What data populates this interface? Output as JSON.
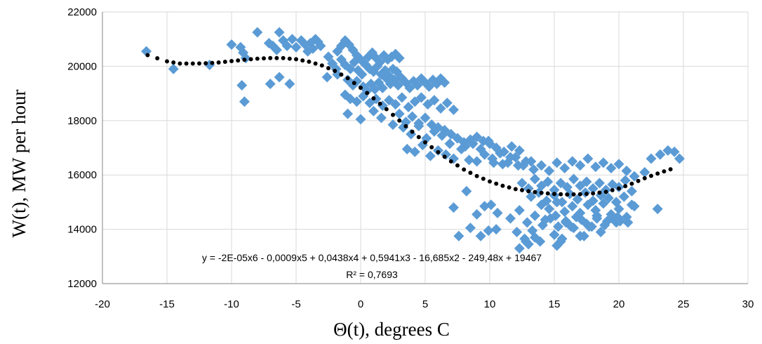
{
  "chart_data": {
    "type": "scatter",
    "xlabel": "Θ(t), degrees C",
    "ylabel": "W(t), MW per hour",
    "xlim": [
      -20,
      30
    ],
    "ylim": [
      12000,
      22000
    ],
    "x_ticks": [
      "-20",
      "-15",
      "-10",
      "-5",
      "0",
      "5",
      "10",
      "15",
      "20",
      "25",
      "30"
    ],
    "y_ticks": [
      "12000",
      "14000",
      "16000",
      "18000",
      "20000",
      "22000"
    ],
    "grid": "vertical and horizontal major gridlines",
    "marker": "diamond",
    "colors": {
      "points": "#5B9BD5",
      "trendline": "#000000",
      "grid": "#D9D9D9"
    },
    "trendline": {
      "type": "polynomial, order 6, dotted",
      "equation": "y = -2E-05x6 - 0,0009x5 + 0,0438x4 + 0,5941x3 - 16,685x2 - 249,48x + 19467",
      "r_squared": "R² = 0,7693",
      "x": [
        -16.5,
        -15,
        -14,
        -13,
        -12,
        -11,
        -10,
        -9,
        -8,
        -7,
        -6,
        -5,
        -4,
        -3,
        -2,
        -1,
        0,
        1,
        2,
        3,
        4,
        5,
        6,
        7,
        8,
        9,
        10,
        11,
        12,
        13,
        14,
        15,
        16,
        17,
        18,
        19,
        20,
        21,
        22,
        23,
        24
      ],
      "y": [
        20410,
        20180,
        20100,
        20100,
        20110,
        20140,
        20190,
        20240,
        20280,
        20300,
        20300,
        20260,
        20170,
        20030,
        19830,
        19560,
        19210,
        18820,
        18420,
        18000,
        17590,
        17200,
        16840,
        16500,
        16200,
        15960,
        15760,
        15600,
        15480,
        15400,
        15340,
        15300,
        15280,
        15290,
        15320,
        15380,
        15500,
        15680,
        15880,
        16050,
        16210
      ]
    },
    "series": [
      {
        "x": [
          -16.6,
          -14.5,
          -11.7,
          -10.0,
          -9.3,
          -9.1,
          -8.9,
          -8.0,
          -7.1,
          -6.8,
          -6.5,
          -6.3,
          -6.0,
          -5.7,
          -5.3,
          -5.0,
          -4.6,
          -4.3,
          -4.1,
          -3.9,
          -3.7,
          -3.5,
          -3.3,
          -3.1,
          -9.2,
          -9.0,
          -7.0,
          -6.3,
          -5.5,
          -2.5,
          -1.8,
          -1.5,
          -1.2,
          -0.9,
          -0.6,
          -0.3,
          0.0,
          0.3,
          0.6,
          0.9,
          1.2,
          1.5,
          1.8,
          2.1,
          2.4,
          2.7,
          3.0,
          -2.2,
          -1.9,
          -1.5,
          -1.2,
          -0.8,
          -0.5,
          -0.2,
          0.1,
          0.4,
          0.7,
          1.0,
          1.3,
          1.6,
          1.9,
          2.2,
          2.5,
          2.8,
          3.1,
          -2.6,
          -1.8,
          -1.0,
          -0.6,
          -0.3,
          0.2,
          0.5,
          0.8,
          1.1,
          1.4,
          1.7,
          2.0,
          2.3,
          2.6,
          2.9,
          3.2,
          3.5,
          3.8,
          4.1,
          4.4,
          4.7,
          5.0,
          5.3,
          5.6,
          5.9,
          6.2,
          6.5,
          -1.2,
          -0.8,
          -0.3,
          0.2,
          0.7,
          1.2,
          1.7,
          2.2,
          2.7,
          3.2,
          3.7,
          4.2,
          4.7,
          5.2,
          5.7,
          6.2,
          6.7,
          7.2,
          -1.0,
          0.0,
          1.0,
          1.6,
          2.5,
          3.0,
          3.5,
          4.0,
          4.5,
          5.0,
          5.5,
          6.0,
          6.5,
          7.0,
          7.5,
          8.0,
          8.5,
          9.0,
          9.5,
          10.0,
          3.3,
          3.9,
          4.5,
          5.1,
          5.7,
          6.3,
          6.9,
          7.5,
          8.1,
          8.7,
          9.3,
          9.9,
          10.5,
          11.1,
          11.7,
          12.3,
          3.6,
          4.2,
          4.8,
          5.4,
          6.0,
          6.6,
          7.2,
          7.8,
          8.4,
          9.0,
          9.6,
          10.2,
          10.8,
          11.4,
          12.0,
          12.6,
          13.2,
          10.3,
          11.0,
          11.6,
          12.2,
          12.8,
          13.4,
          14.0,
          14.6,
          15.2,
          15.8,
          16.4,
          17.0,
          17.6,
          18.2,
          18.8,
          19.4,
          20.0,
          20.6,
          21.2,
          22.0,
          22.5,
          23.2,
          23.8,
          24.3,
          24.7,
          12.5,
          13.0,
          13.5,
          14.0,
          14.5,
          15.0,
          15.5,
          16.0,
          16.5,
          17.0,
          17.5,
          18.0,
          18.5,
          19.0,
          19.5,
          20.0,
          20.5,
          21.0,
          13.2,
          13.8,
          14.4,
          15.0,
          15.6,
          16.2,
          16.8,
          17.4,
          18.0,
          18.6,
          19.2,
          19.8,
          20.4,
          14.0,
          14.6,
          15.2,
          15.8,
          16.4,
          17.0,
          17.6,
          18.2,
          18.8,
          19.4,
          20.0,
          20.6,
          21.2,
          14.3,
          15.1,
          15.9,
          16.7,
          17.5,
          18.3,
          19.1,
          19.9,
          20.7,
          7.2,
          8.2,
          9.0,
          9.6,
          10.1,
          10.6,
          11.6,
          12.3,
          12.9,
          13.5,
          14.1,
          14.7,
          15.3,
          15.9,
          16.5,
          17.1,
          17.7,
          18.3,
          18.9,
          19.5,
          20.1,
          21.0,
          23.0,
          7.6,
          8.5,
          9.3,
          9.9,
          10.5,
          12.1,
          12.7,
          13.3,
          13.9,
          15.0,
          15.6,
          16.3,
          17.0,
          17.9,
          18.6,
          19.8,
          12.3,
          12.8,
          13.0,
          13.5,
          15.2,
          15.5,
          17.3
        ],
        "y": [
          20550,
          19900,
          20050,
          20800,
          20700,
          20500,
          20300,
          21250,
          20850,
          20750,
          20600,
          21250,
          20950,
          20750,
          21000,
          20700,
          20950,
          20800,
          20550,
          20850,
          20650,
          21000,
          20900,
          20750,
          19300,
          18700,
          19350,
          19600,
          19350,
          20350,
          20550,
          20750,
          20950,
          20800,
          20600,
          20400,
          20250,
          20100,
          20350,
          20500,
          20300,
          20150,
          20400,
          20250,
          20350,
          20450,
          20300,
          20100,
          19900,
          20250,
          20050,
          19900,
          20150,
          19850,
          19700,
          20050,
          19900,
          19800,
          20000,
          19700,
          19850,
          19650,
          19900,
          19800,
          19600,
          19600,
          19700,
          19500,
          19300,
          19450,
          19250,
          19100,
          19350,
          19150,
          19400,
          19200,
          19550,
          19350,
          19500,
          19300,
          19550,
          19400,
          19200,
          19450,
          19300,
          19550,
          19400,
          19250,
          19500,
          19350,
          19550,
          19400,
          18950,
          18800,
          18700,
          18900,
          18650,
          18800,
          18550,
          18750,
          18600,
          18850,
          18500,
          18700,
          18850,
          18600,
          18750,
          18450,
          18650,
          18400,
          18250,
          18050,
          18350,
          18100,
          17850,
          18250,
          17950,
          18150,
          17900,
          18100,
          17850,
          17750,
          17650,
          17500,
          17350,
          17200,
          17300,
          17400,
          17250,
          17150,
          17750,
          17500,
          17800,
          17350,
          17600,
          17450,
          17150,
          17350,
          17050,
          17150,
          16950,
          17250,
          17000,
          16850,
          17050,
          16900,
          16950,
          16850,
          17100,
          16700,
          16900,
          16750,
          16600,
          16950,
          16550,
          16500,
          16750,
          16600,
          16800,
          16450,
          16650,
          16350,
          16500,
          16450,
          16400,
          16650,
          16350,
          16500,
          16200,
          16350,
          16150,
          16450,
          16250,
          16500,
          16350,
          16600,
          16300,
          16450,
          16250,
          16400,
          16150,
          15950,
          16100,
          16600,
          16750,
          16900,
          16850,
          16600,
          15700,
          15500,
          15850,
          15600,
          15750,
          15450,
          15700,
          15550,
          15850,
          15600,
          15750,
          15500,
          15700,
          15450,
          15650,
          15550,
          15800,
          15400,
          15200,
          15350,
          15050,
          15250,
          15000,
          15300,
          15100,
          15350,
          15050,
          15250,
          15150,
          15000,
          15200,
          14900,
          14750,
          15000,
          14650,
          14850,
          14600,
          14900,
          14700,
          14950,
          14550,
          14750,
          14450,
          14850,
          14350,
          14500,
          14250,
          14450,
          14200,
          14500,
          14300,
          14450,
          14250,
          14800,
          15400,
          14550,
          14850,
          14900,
          14600,
          14400,
          14700,
          14250,
          14500,
          14150,
          14400,
          14100,
          14300,
          14050,
          14350,
          14100,
          14400,
          14150,
          14450,
          14300,
          14900,
          14750,
          13750,
          14050,
          13750,
          13950,
          14000,
          13900,
          13650,
          13950,
          13550,
          13800,
          13650,
          14100,
          13750,
          14100,
          13900,
          14250,
          13300,
          13550,
          13450,
          13700,
          13400,
          13550,
          13750
        ]
      }
    ]
  }
}
